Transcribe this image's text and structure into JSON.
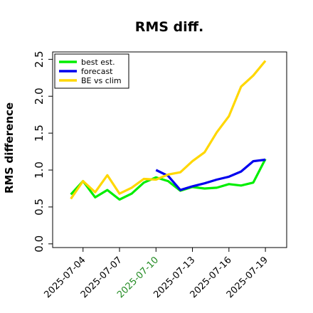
{
  "chart_data": {
    "type": "line",
    "title": "RMS diff.",
    "xlabel": "",
    "ylabel": "RMS difference",
    "ylim": [
      -0.05,
      2.6
    ],
    "yticks": [
      "0.0",
      "0.5",
      "1.0",
      "1.5",
      "2.0",
      "2.5"
    ],
    "x_tick_labels": [
      "2025-07-04",
      "2025-07-07",
      "2025-07-10",
      "2025-07-13",
      "2025-07-16",
      "2025-07-19"
    ],
    "x_tick_colors": [
      "#000000",
      "#000000",
      "#228b22",
      "#000000",
      "#000000",
      "#000000"
    ],
    "xlim": [
      "2025-07-01 12:00",
      "2025-07-20 18:00"
    ],
    "grid": false,
    "legend_position": "top-left",
    "series": [
      {
        "name": "best est.",
        "color": "#00ee00",
        "points": [
          [
            "2025-07-03",
            0.67
          ],
          [
            "2025-07-04",
            0.85
          ],
          [
            "2025-07-05",
            0.63
          ],
          [
            "2025-07-06",
            0.73
          ],
          [
            "2025-07-07",
            0.6
          ],
          [
            "2025-07-08",
            0.68
          ],
          [
            "2025-07-09",
            0.83
          ],
          [
            "2025-07-10",
            0.9
          ],
          [
            "2025-07-11",
            0.85
          ],
          [
            "2025-07-12",
            0.72
          ],
          [
            "2025-07-13",
            0.77
          ],
          [
            "2025-07-14",
            0.75
          ],
          [
            "2025-07-15",
            0.76
          ],
          [
            "2025-07-16",
            0.81
          ],
          [
            "2025-07-17",
            0.79
          ],
          [
            "2025-07-18",
            0.83
          ],
          [
            "2025-07-19",
            1.15
          ]
        ]
      },
      {
        "name": "forecast",
        "color": "#0000ee",
        "points": [
          [
            "2025-07-10",
            1.0
          ],
          [
            "2025-07-11",
            0.92
          ],
          [
            "2025-07-12",
            0.73
          ],
          [
            "2025-07-13",
            0.78
          ],
          [
            "2025-07-14",
            0.82
          ],
          [
            "2025-07-15",
            0.87
          ],
          [
            "2025-07-16",
            0.91
          ],
          [
            "2025-07-17",
            0.98
          ],
          [
            "2025-07-18",
            1.12
          ],
          [
            "2025-07-19",
            1.14
          ]
        ]
      },
      {
        "name": "BE vs clim",
        "color": "#ffd700",
        "points": [
          [
            "2025-07-03",
            0.61
          ],
          [
            "2025-07-04",
            0.85
          ],
          [
            "2025-07-05",
            0.7
          ],
          [
            "2025-07-06",
            0.93
          ],
          [
            "2025-07-07",
            0.68
          ],
          [
            "2025-07-08",
            0.76
          ],
          [
            "2025-07-09",
            0.88
          ],
          [
            "2025-07-10",
            0.87
          ],
          [
            "2025-07-11",
            0.94
          ],
          [
            "2025-07-12",
            0.97
          ],
          [
            "2025-07-13",
            1.12
          ],
          [
            "2025-07-14",
            1.24
          ],
          [
            "2025-07-15",
            1.51
          ],
          [
            "2025-07-16",
            1.73
          ],
          [
            "2025-07-17",
            2.13
          ],
          [
            "2025-07-18",
            2.28
          ],
          [
            "2025-07-19",
            2.48
          ]
        ]
      }
    ]
  }
}
